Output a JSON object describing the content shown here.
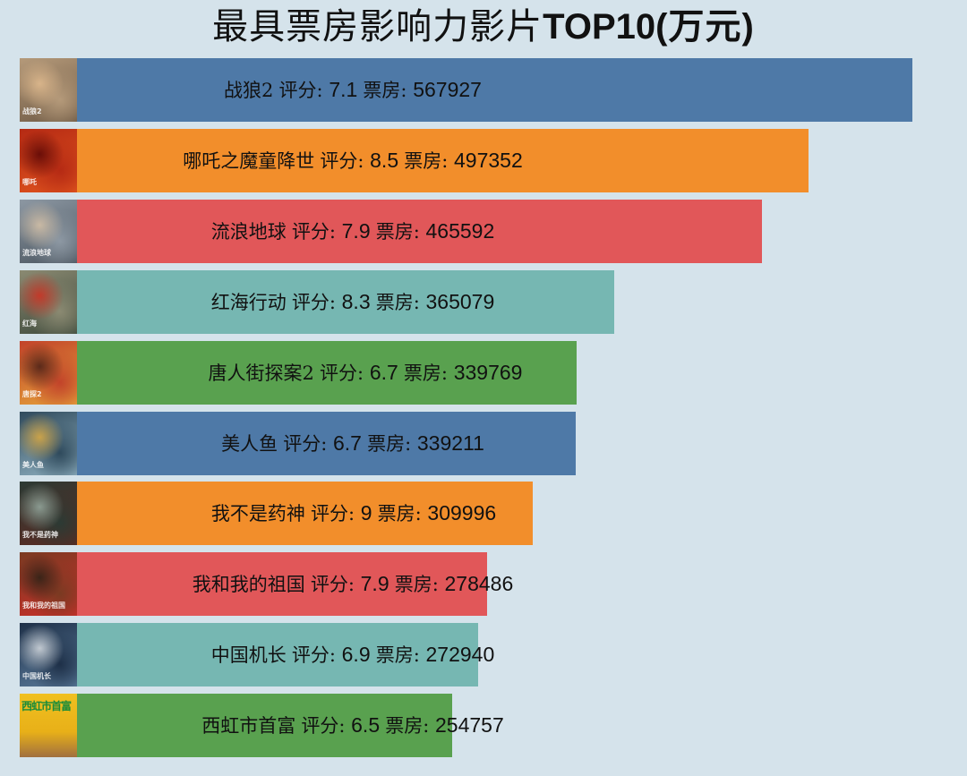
{
  "title": {
    "prefix": "最具票房影响力影片",
    "bold": "TOP10",
    "suffix": "(万元)"
  },
  "labels": {
    "score_key": "评分: ",
    "box_key": "票房: "
  },
  "movies": [
    {
      "name": "战狼2",
      "score": "7.1",
      "box_office": "567927",
      "color": "#4e79a7",
      "poster_colors": [
        "#b59a7a",
        "#6f5a45",
        "#d8b48a"
      ],
      "poster_text": "战狼2"
    },
    {
      "name": "哪吒之魔童降世",
      "score": "8.5",
      "box_office": "497352",
      "color": "#f28e2b",
      "poster_colors": [
        "#b52a14",
        "#e0541e",
        "#6a0e08"
      ],
      "poster_text": "哪吒"
    },
    {
      "name": "流浪地球",
      "score": "7.9",
      "box_office": "465592",
      "color": "#e15759",
      "poster_colors": [
        "#8d98a3",
        "#4b5660",
        "#c9b9a4"
      ],
      "poster_text": "流浪地球"
    },
    {
      "name": "红海行动",
      "score": "8.3",
      "box_office": "365079",
      "color": "#76b7b2",
      "poster_colors": [
        "#8b8a72",
        "#3e4a3c",
        "#c23a2a"
      ],
      "poster_text": "红海"
    },
    {
      "name": "唐人街探案2",
      "score": "6.7",
      "box_office": "339769",
      "color": "#59a14f",
      "poster_colors": [
        "#c2432a",
        "#e5a23a",
        "#5b2a1a"
      ],
      "poster_text": "唐探2"
    },
    {
      "name": "美人鱼",
      "score": "6.7",
      "box_office": "339211",
      "color": "#4e79a7",
      "poster_colors": [
        "#2f4a5c",
        "#8fb0c0",
        "#c9a24a"
      ],
      "poster_text": "美人鱼"
    },
    {
      "name": "我不是药神",
      "score": "9",
      "box_office": "309996",
      "color": "#f28e2b",
      "poster_colors": [
        "#2c3a34",
        "#5b2a22",
        "#8a9a90"
      ],
      "poster_text": "我不是药神"
    },
    {
      "name": "我和我的祖国",
      "score": "7.9",
      "box_office": "278486",
      "color": "#e15759",
      "poster_colors": [
        "#7a3a22",
        "#c8302a",
        "#3a2418"
      ],
      "poster_text": "我和我的祖国"
    },
    {
      "name": "中国机长",
      "score": "6.9",
      "box_office": "272940",
      "color": "#76b7b2",
      "poster_colors": [
        "#1e3048",
        "#5a7a9a",
        "#c0c8d0"
      ],
      "poster_text": "中国机长"
    },
    {
      "name": "西虹市首富",
      "score": "6.5",
      "box_office": "254757",
      "color": "#59a14f",
      "poster_colors": [
        "#f0c020",
        "#e8b018",
        "#a07040"
      ],
      "poster_text": "西虹市首富"
    }
  ],
  "chart_data": {
    "type": "bar",
    "orientation": "horizontal",
    "title": "最具票房影响力影片TOP10(万元)",
    "xlabel": "",
    "ylabel": "",
    "grid": false,
    "legend": null,
    "categories": [
      "战狼2",
      "哪吒之魔童降世",
      "流浪地球",
      "红海行动",
      "唐人街探案2",
      "美人鱼",
      "我不是药神",
      "我和我的祖国",
      "中国机长",
      "西虹市首富"
    ],
    "series": [
      {
        "name": "票房(万元)",
        "values": [
          567927,
          497352,
          465592,
          365079,
          339769,
          339211,
          309996,
          278486,
          272940,
          254757
        ]
      },
      {
        "name": "评分",
        "values": [
          7.1,
          8.5,
          7.9,
          8.3,
          6.7,
          6.7,
          9,
          7.9,
          6.9,
          6.5
        ]
      }
    ],
    "bar_colors": [
      "#4e79a7",
      "#f28e2b",
      "#e15759",
      "#76b7b2",
      "#59a14f",
      "#4e79a7",
      "#f28e2b",
      "#e15759",
      "#76b7b2",
      "#59a14f"
    ],
    "annotations": "Each bar labeled '<name> 评分: <score> 票房: <box office>'; poster thumbnail left of each bar"
  }
}
